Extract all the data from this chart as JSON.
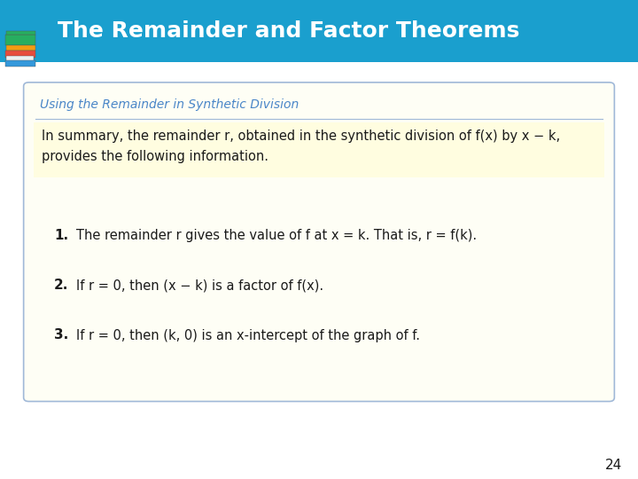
{
  "title": "The Remainder and Factor Theorems",
  "title_bg_color": "#1a9fce",
  "title_text_color": "#ffffff",
  "title_fontsize": 18,
  "box_title": "Using the Remainder in Synthetic Division",
  "box_title_color": "#4a86c8",
  "box_bg_color": "#fefef5",
  "box_border_color": "#a0b8d8",
  "intro_line1": "In summary, the remainder r, obtained in the synthetic division of f(x) by x − k,",
  "intro_line2": "provides the following information.",
  "items": [
    "The remainder r gives the value of f at x = k. That is, r = f(k).",
    "If r = 0, then (x − k) is a factor of f(x).",
    "If r = 0, then (k, 0) is an x-intercept of the graph of f."
  ],
  "item_numbers": [
    "1.",
    "2.",
    "3."
  ],
  "page_number": "24",
  "bg_color": "#ffffff",
  "text_color": "#1a1a1a",
  "text_fontsize": 10.5,
  "highlight_color": "#fffde0"
}
